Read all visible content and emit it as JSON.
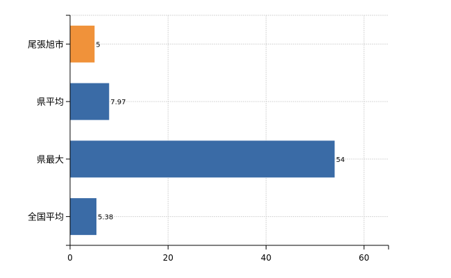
{
  "chart_data": {
    "type": "bar",
    "orientation": "horizontal",
    "categories": [
      "尾張旭市",
      "県平均",
      "県最大",
      "全国平均"
    ],
    "values": [
      5,
      7.97,
      54,
      5.38
    ],
    "value_labels": [
      "5",
      "7.97",
      "54",
      "5.38"
    ],
    "bar_colors": [
      "#f0923a",
      "#3a6ba6",
      "#3a6ba6",
      "#3a6ba6"
    ],
    "xlim": [
      0,
      65
    ],
    "xticks": [
      0,
      20,
      40,
      60
    ],
    "xtick_labels": [
      "0",
      "20",
      "40",
      "60"
    ],
    "grid": true,
    "legend": "none",
    "title": "",
    "xlabel": "",
    "ylabel": ""
  }
}
